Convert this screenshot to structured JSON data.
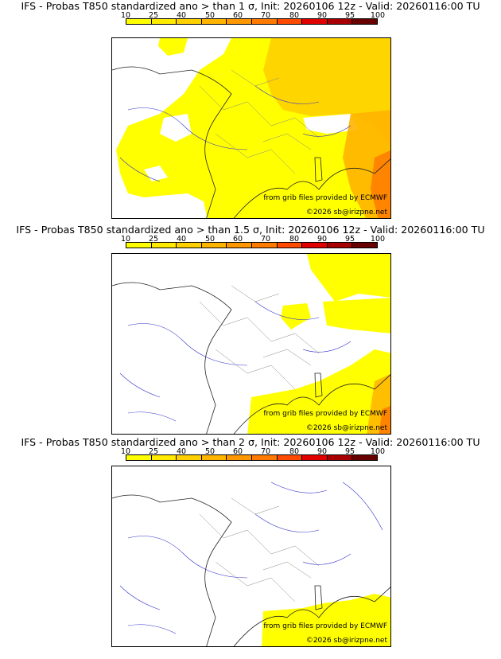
{
  "panels": [
    {
      "title": "IFS - Probas T850  standardized ano > than 1 σ, Init: 20260106 12z - Valid: 20260116:00 TU"
    },
    {
      "title": "IFS - Probas T850  standardized ano > than 1.5 σ, Init: 20260106 12z - Valid: 20260116:00 TU"
    },
    {
      "title": "IFS - Probas T850  standardized ano > than 2 σ, Init: 20260106 12z - Valid: 20260116:00 TU"
    }
  ],
  "scale": {
    "labels": [
      "10",
      "25",
      "40",
      "50",
      "60",
      "70",
      "80",
      "90",
      "95",
      "100"
    ],
    "colors": [
      "#ffff00",
      "#ffea00",
      "#ffd000",
      "#ffb400",
      "#ff9800",
      "#ff7a00",
      "#ff4a00",
      "#e00000",
      "#a80000",
      "#680000"
    ]
  },
  "credits": {
    "source": "from grib files provided by ECMWF",
    "copyright": "©2026 sb@irizpne.net"
  }
}
